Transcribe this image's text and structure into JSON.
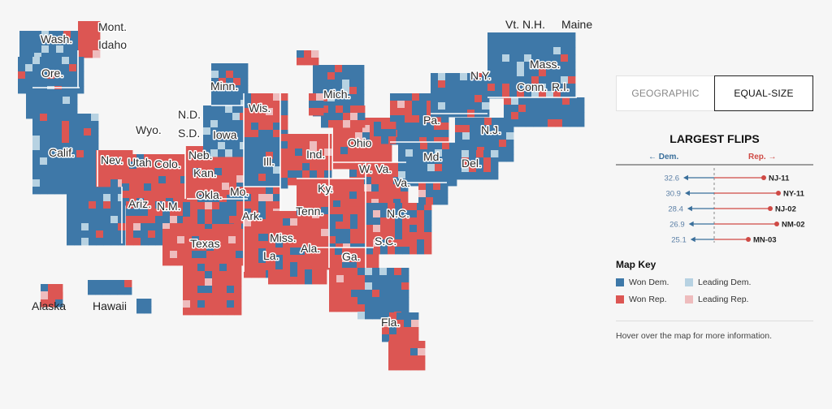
{
  "colors": {
    "won_dem": "#3e78a8",
    "won_rep": "#dc5653",
    "leading_dem": "#b7d2e2",
    "leading_rep": "#eebcbd",
    "arrow_dem": "#3a6f9b",
    "arrow_rep": "#cf4a45"
  },
  "map": {
    "states": [
      "Wash.",
      "Ore.",
      "Calif.",
      "Nev.",
      "Idaho",
      "Mont.",
      "Wyo.",
      "Utah",
      "Colo.",
      "Ariz.",
      "N.M.",
      "N.D.",
      "S.D.",
      "Neb.",
      "Kan.",
      "Okla.",
      "Texas",
      "Minn.",
      "Iowa",
      "Mo.",
      "Ark.",
      "La.",
      "Wis.",
      "Ill.",
      "Miss.",
      "Mich.",
      "Ind.",
      "Ky.",
      "Tenn.",
      "Ala.",
      "Ohio",
      "Ga.",
      "Fla.",
      "Pa.",
      "W. Va.",
      "Va.",
      "N.C.",
      "S.C.",
      "N.Y.",
      "Vt. N.H.",
      "Maine",
      "Mass.",
      "Conn.",
      "R.I.",
      "N.J.",
      "Md.",
      "Del.",
      "Alaska",
      "Hawaii"
    ]
  },
  "panel": {
    "tabs": [
      {
        "label": "GEOGRAPHIC",
        "active": false
      },
      {
        "label": "EQUAL-SIZE",
        "active": true
      }
    ],
    "flips_title": "LARGEST FLIPS",
    "dem_axis_label": "← Dem.",
    "rep_axis_label": "Rep. →",
    "flips": [
      {
        "district": "NJ-11",
        "value": "32.6"
      },
      {
        "district": "NY-11",
        "value": "30.9"
      },
      {
        "district": "NJ-02",
        "value": "28.4"
      },
      {
        "district": "NM-02",
        "value": "26.9"
      },
      {
        "district": "MN-03",
        "value": "25.1"
      }
    ],
    "key_title": "Map Key",
    "key": [
      {
        "label": "Won Dem.",
        "color": "#3e78a8"
      },
      {
        "label": "Leading Dem.",
        "color": "#b7d2e2"
      },
      {
        "label": "Won Rep.",
        "color": "#dc5653"
      },
      {
        "label": "Leading Rep.",
        "color": "#eebcbd"
      }
    ],
    "hover_note": "Hover over the map for more information."
  }
}
